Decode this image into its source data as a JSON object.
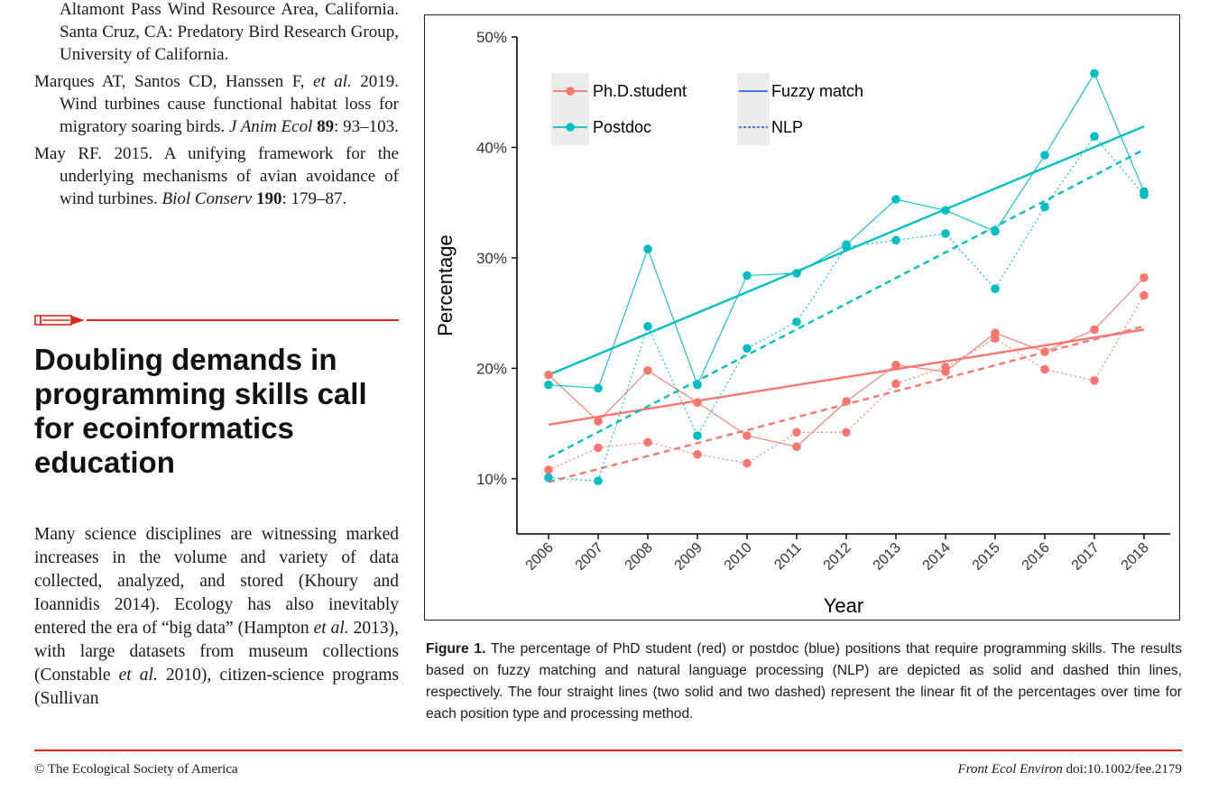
{
  "references": [
    {
      "continuation": true,
      "text": "Altamont Pass Wind Resource Area, California. Santa Cruz, CA: Predatory Bird Research Group, University of California."
    },
    {
      "continuation": false,
      "parts": [
        {
          "t": "Marques AT, Santos CD, Hanssen F, "
        },
        {
          "t": "et al.",
          "i": true
        },
        {
          "t": " 2019. Wind turbines cause functional habitat loss for migratory soaring birds. "
        },
        {
          "t": "J Anim Ecol",
          "i": true
        },
        {
          "t": " "
        },
        {
          "t": "89",
          "b": true
        },
        {
          "t": ": 93–103."
        }
      ]
    },
    {
      "continuation": false,
      "parts": [
        {
          "t": "May RF. 2015. A unifying framework for the underlying mechanisms of avian avoidance of wind turbines. "
        },
        {
          "t": "Biol Conserv",
          "i": true
        },
        {
          "t": " "
        },
        {
          "t": "190",
          "b": true
        },
        {
          "t": ": 179–87."
        }
      ]
    }
  ],
  "section_heading": "Doubling demands in programming skills call for ecoinformatics education",
  "body_parts": [
    {
      "t": "Many science disciplines are witnessing marked increases in the volume and variety of data collected, analyzed, and stored (Khoury and Ioannidis 2014). Ecology has also inevitably entered the era of “big data” (Hampton "
    },
    {
      "t": "et al.",
      "i": true
    },
    {
      "t": " 2013), with large datasets from museum collections (Constable "
    },
    {
      "t": "et al.",
      "i": true
    },
    {
      "t": " 2010), citizen-science programs (Sullivan"
    }
  ],
  "caption": {
    "label": "Figure 1.",
    "text": " The percentage of PhD student (red) or postdoc (blue) positions that require programming skills. The results based on fuzzy matching and natural language processing (NLP) are depicted as solid and dashed thin lines, respectively. The four straight lines (two solid and two dashed) represent the linear fit of the percentages over time for each position type and processing method."
  },
  "footer": {
    "left": "© The Ecological Society of America",
    "right_journal": "Front Ecol Environ",
    "right_doi": " doi:10.1002/fee.2179"
  },
  "colors": {
    "phd": "#f8766d",
    "postdoc": "#00bfc4",
    "method": "#3366ff",
    "accent": "#e1251b"
  },
  "chart_data": {
    "type": "line",
    "title": "",
    "xlabel": "Year",
    "ylabel": "Percentage",
    "x": [
      "2006",
      "2007",
      "2008",
      "2009",
      "2010",
      "2011",
      "2012",
      "2013",
      "2014",
      "2015",
      "2016",
      "2017",
      "2018"
    ],
    "ylim": [
      5,
      50
    ],
    "yticks": [
      10,
      20,
      30,
      40,
      50
    ],
    "ytick_labels": [
      "10%",
      "20%",
      "30%",
      "40%",
      "50%"
    ],
    "grid": false,
    "legend_position": "top-left",
    "legend": {
      "position_items": [
        {
          "label": "Ph.D.student",
          "key": "phd"
        },
        {
          "label": "Postdoc",
          "key": "postdoc"
        }
      ],
      "method_items": [
        {
          "label": "Fuzzy match",
          "style": "solid"
        },
        {
          "label": "NLP",
          "style": "dashed"
        }
      ]
    },
    "series": [
      {
        "position": "phd",
        "method": "fuzzy",
        "values": [
          19.4,
          15.2,
          19.8,
          16.9,
          13.9,
          12.9,
          17.0,
          20.3,
          19.7,
          23.2,
          21.5,
          23.5,
          28.2
        ]
      },
      {
        "position": "phd",
        "method": "nlp",
        "values": [
          10.8,
          12.8,
          13.3,
          12.2,
          11.4,
          14.2,
          14.2,
          18.6,
          20.1,
          22.7,
          19.9,
          18.9,
          26.6
        ]
      },
      {
        "position": "postdoc",
        "method": "fuzzy",
        "values": [
          18.5,
          18.2,
          30.8,
          18.5,
          28.4,
          28.6,
          31.2,
          35.3,
          34.3,
          32.4,
          39.3,
          46.7,
          36.0
        ]
      },
      {
        "position": "postdoc",
        "method": "nlp",
        "values": [
          10.1,
          9.8,
          23.8,
          13.9,
          21.8,
          24.2,
          31.0,
          31.6,
          32.2,
          27.2,
          34.6,
          41.0,
          35.7
        ]
      }
    ],
    "fits": [
      {
        "position": "phd",
        "method": "fuzzy",
        "start": 14.9,
        "end": 23.5
      },
      {
        "position": "phd",
        "method": "nlp",
        "start": 9.7,
        "end": 23.8
      },
      {
        "position": "postdoc",
        "method": "fuzzy",
        "start": 19.4,
        "end": 41.9
      },
      {
        "position": "postdoc",
        "method": "nlp",
        "start": 11.9,
        "end": 39.8
      }
    ]
  }
}
